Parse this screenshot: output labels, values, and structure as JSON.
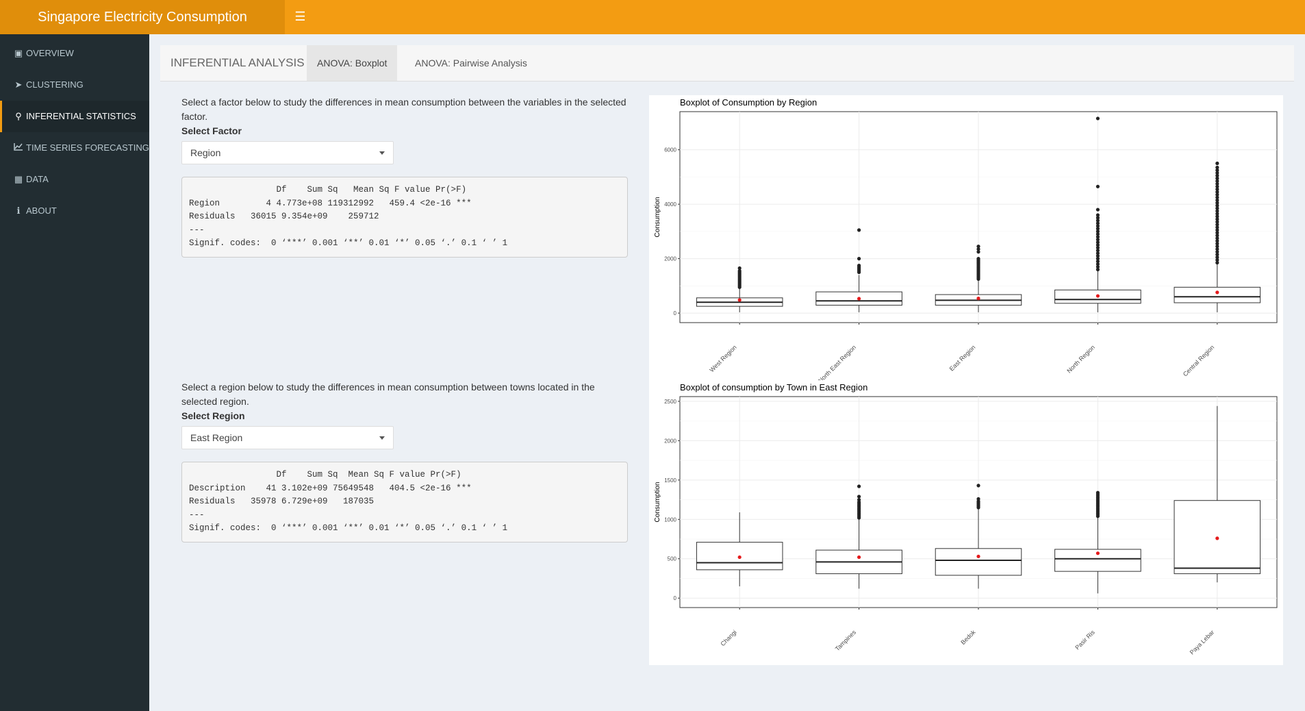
{
  "app": {
    "title": "Singapore Electricity Consumption",
    "menu_icon": "hamburger-icon"
  },
  "sidebar": {
    "items": [
      {
        "label": "OVERVIEW",
        "icon": "overview-icon"
      },
      {
        "label": "CLUSTERING",
        "icon": "clustering-icon"
      },
      {
        "label": "INFERENTIAL STATISTICS",
        "icon": "search-chart-icon",
        "active": true
      },
      {
        "label": "TIME SERIES FORECASTING",
        "icon": "line-chart-icon"
      },
      {
        "label": "DATA",
        "icon": "table-icon"
      },
      {
        "label": "ABOUT",
        "icon": "info-icon"
      }
    ]
  },
  "tabs": {
    "title": "INFERENTIAL ANALYSIS",
    "items": [
      {
        "label": "ANOVA: Boxplot",
        "active": true
      },
      {
        "label": "ANOVA: Pairwise Analysis"
      }
    ]
  },
  "factor_section": {
    "description": "Select a factor below to study the differences in mean consumption between the variables in the selected factor.",
    "label": "Select Factor",
    "selected": "Region",
    "output": "                 Df    Sum Sq   Mean Sq F value Pr(>F)    \nRegion         4 4.773e+08 119312992   459.4 <2e-16 ***\nResiduals   36015 9.354e+09    259712                   \n---\nSignif. codes:  0 ‘***’ 0.001 ‘**’ 0.01 ‘*’ 0.05 ‘.’ 0.1 ‘ ’ 1"
  },
  "region_section": {
    "description": "Select a region below to study the differences in mean consumption between towns located in the selected region.",
    "label": "Select Region",
    "selected": "East Region",
    "output": "                 Df    Sum Sq  Mean Sq F value Pr(>F)    \nDescription    41 3.102e+09 75649548   404.5 <2e-16 ***\nResiduals   35978 6.729e+09   187035                   \n---\nSignif. codes:  0 ‘***’ 0.001 ‘**’ 0.01 ‘*’ 0.05 ‘.’ 0.1 ‘ ’ 1"
  },
  "chart_data": [
    {
      "type": "boxplot",
      "title": "Boxplot of Consumption by Region",
      "xlabel": "",
      "ylabel": "Consumption",
      "ylim": [
        -350,
        7400
      ],
      "yticks": [
        0,
        2000,
        4000,
        6000
      ],
      "grid": true,
      "categories": [
        "West Region",
        "North East Region",
        "East Region",
        "North Region",
        "Central Region"
      ],
      "boxes": [
        {
          "lower_whisker": 30,
          "q1": 250,
          "median": 400,
          "q3": 560,
          "upper_whisker": 900,
          "mean": 480,
          "outliers": [
            950,
            1000,
            1050,
            1100,
            1150,
            1200,
            1250,
            1300,
            1350,
            1400,
            1450,
            1500,
            1550,
            1650
          ]
        },
        {
          "lower_whisker": 30,
          "q1": 290,
          "median": 450,
          "q3": 780,
          "upper_whisker": 1400,
          "mean": 530,
          "outliers": [
            1500,
            1550,
            1600,
            1650,
            1700,
            1750,
            2000,
            3050
          ]
        },
        {
          "lower_whisker": 30,
          "q1": 290,
          "median": 470,
          "q3": 680,
          "upper_whisker": 1200,
          "mean": 540,
          "outliers": [
            1250,
            1300,
            1350,
            1400,
            1450,
            1500,
            1550,
            1600,
            1650,
            1700,
            1750,
            1800,
            1850,
            1900,
            1950,
            2000,
            2250,
            2350,
            2450
          ]
        },
        {
          "lower_whisker": 30,
          "q1": 360,
          "median": 500,
          "q3": 850,
          "upper_whisker": 1550,
          "mean": 630,
          "outliers": [
            1600,
            1700,
            1800,
            1900,
            2000,
            2100,
            2200,
            2300,
            2400,
            2500,
            2600,
            2700,
            2800,
            2900,
            3000,
            3100,
            3200,
            3300,
            3400,
            3500,
            3600,
            3800,
            4650,
            7150
          ]
        },
        {
          "lower_whisker": 30,
          "q1": 380,
          "median": 600,
          "q3": 950,
          "upper_whisker": 1800,
          "mean": 760,
          "outliers": [
            1850,
            1950,
            2050,
            2150,
            2250,
            2350,
            2450,
            2550,
            2650,
            2750,
            2850,
            2950,
            3050,
            3150,
            3250,
            3350,
            3450,
            3550,
            3650,
            3750,
            3850,
            3950,
            4050,
            4150,
            4250,
            4350,
            4450,
            4550,
            4650,
            4750,
            4850,
            4950,
            5050,
            5150,
            5250,
            5350,
            5500
          ]
        }
      ]
    },
    {
      "type": "boxplot",
      "title": "Boxplot of consumption by Town in East Region",
      "xlabel": "",
      "ylabel": "Consumption",
      "ylim": [
        -120,
        2560
      ],
      "yticks": [
        0,
        500,
        1000,
        1500,
        2000,
        2500
      ],
      "grid": true,
      "categories": [
        "Changi",
        "Tampines",
        "Bedok",
        "Pasir Ris",
        "Paya Lebar"
      ],
      "boxes": [
        {
          "lower_whisker": 150,
          "q1": 360,
          "median": 450,
          "q3": 710,
          "upper_whisker": 1090,
          "mean": 520,
          "outliers": []
        },
        {
          "lower_whisker": 120,
          "q1": 310,
          "median": 460,
          "q3": 610,
          "upper_whisker": 1000,
          "mean": 520,
          "outliers": [
            1020,
            1040,
            1060,
            1080,
            1100,
            1120,
            1140,
            1160,
            1180,
            1200,
            1220,
            1250,
            1290,
            1420
          ]
        },
        {
          "lower_whisker": 120,
          "q1": 290,
          "median": 480,
          "q3": 630,
          "upper_whisker": 1130,
          "mean": 530,
          "outliers": [
            1150,
            1170,
            1190,
            1210,
            1230,
            1260,
            1430
          ]
        },
        {
          "lower_whisker": 60,
          "q1": 340,
          "median": 500,
          "q3": 620,
          "upper_whisker": 1020,
          "mean": 570,
          "outliers": [
            1040,
            1060,
            1080,
            1100,
            1120,
            1140,
            1160,
            1180,
            1200,
            1220,
            1240,
            1260,
            1280,
            1300,
            1320,
            1340
          ]
        },
        {
          "lower_whisker": 200,
          "q1": 310,
          "median": 380,
          "q3": 1240,
          "upper_whisker": 2440,
          "mean": 760,
          "outliers": []
        }
      ]
    }
  ]
}
